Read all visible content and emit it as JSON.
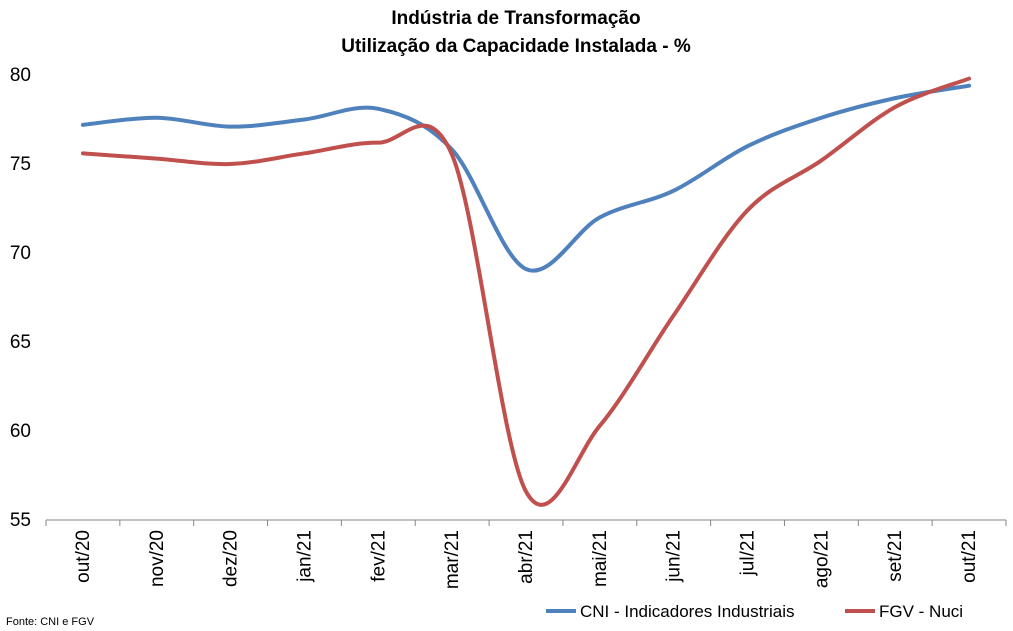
{
  "chart_data": {
    "type": "line",
    "title": "Indústria de Transformação",
    "subtitle": "Utilização da Capacidade Instalada - %",
    "xlabel": "",
    "ylabel": "",
    "categories": [
      "out/20",
      "nov/20",
      "dez/20",
      "jan/21",
      "fev/21",
      "mar/21",
      "abr/21",
      "mai/21",
      "jun/21",
      "jul/21",
      "ago/21",
      "set/21",
      "out/21"
    ],
    "ylim": [
      55,
      80
    ],
    "yticks": [
      55,
      60,
      65,
      70,
      75,
      80
    ],
    "grid": false,
    "legend_position": "bottom-right",
    "series": [
      {
        "name": "CNI - Indicadores Industriais",
        "color": "#4f81bd",
        "values": [
          77.2,
          77.6,
          77.1,
          77.5,
          78.1,
          75.8,
          69.1,
          72.0,
          73.5,
          76.0,
          77.6,
          78.7,
          79.4
        ]
      },
      {
        "name": "FGV - Nuci",
        "color": "#c0504d",
        "values": [
          75.6,
          75.3,
          75.0,
          75.6,
          76.2,
          75.5,
          56.6,
          60.3,
          66.5,
          72.4,
          75.2,
          78.2,
          79.8
        ]
      }
    ],
    "source": "Fonte: CNI e FGV"
  }
}
